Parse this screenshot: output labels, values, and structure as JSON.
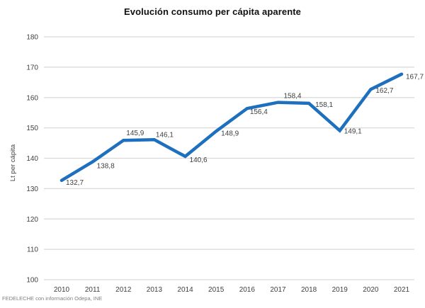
{
  "header": {
    "title": "Evolución consumo per cápita aparente"
  },
  "footer": {
    "source": "FEDELECHE con información Odepa, INE"
  },
  "chart_data": {
    "type": "line",
    "title": "Evolución consumo per cápita aparente",
    "categories": [
      "2010",
      "2011",
      "2012",
      "2013",
      "2014",
      "2015",
      "2016",
      "2017",
      "2018",
      "2019",
      "2020",
      "2021"
    ],
    "values": [
      132.7,
      138.8,
      145.9,
      146.1,
      140.6,
      148.9,
      156.4,
      158.4,
      158.1,
      149.1,
      162.7,
      167.7
    ],
    "point_labels": [
      "132,7",
      "138,8",
      "145,9",
      "146,1",
      "140,6",
      "148,9",
      "156,4",
      "158,4",
      "158,1",
      "149,1",
      "162,7",
      "167,7"
    ],
    "xlabel": "",
    "ylabel": "Lt per cápita",
    "ylim": [
      100,
      180
    ],
    "ytick_step": 10,
    "ytick_labels": [
      "100",
      "110",
      "120",
      "130",
      "140",
      "150",
      "160",
      "170",
      "180"
    ],
    "grid": "horizontal",
    "legend": "none",
    "colors": {
      "line": "#1E70BF",
      "gridline": "#D9D9D9",
      "axis_text": "#404040",
      "data_label_text": "#404040"
    },
    "source_note": "FEDELECHE con información Odepa, INE"
  }
}
